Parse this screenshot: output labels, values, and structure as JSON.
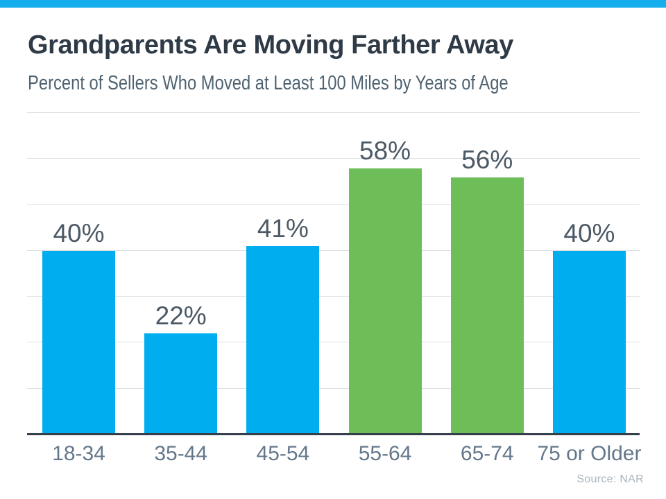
{
  "page": {
    "accent_strip_color": "#13aeeb"
  },
  "header": {
    "title": "Grandparents Are Moving Farther Away",
    "subtitle": "Percent of Sellers Who Moved at Least 100 Miles by Years of Age"
  },
  "footer": {
    "source": "Source: NAR"
  },
  "chart_data": {
    "type": "bar",
    "title": "Grandparents Are Moving Farther Away",
    "subtitle": "Percent of Sellers Who Moved at Least 100 Miles by Years of Age",
    "categories": [
      "18-34",
      "35-44",
      "45-54",
      "55-64",
      "65-74",
      "75 or Older"
    ],
    "values": [
      40,
      22,
      41,
      58,
      56,
      40
    ],
    "value_labels": [
      "40%",
      "22%",
      "41%",
      "58%",
      "56%",
      "40%"
    ],
    "bar_colors": [
      "#00aeef",
      "#00aeef",
      "#00aeef",
      "#6dbe58",
      "#6dbe58",
      "#00aeef"
    ],
    "brand_blue": "#00aeef",
    "brand_green": "#6dbe58",
    "xlabel": "",
    "ylabel": "",
    "ylim": [
      0,
      70
    ],
    "grid": {
      "axis": "y",
      "step": 10,
      "color": "#dbdfe2",
      "visible": true
    },
    "baseline_color": "#353f4a",
    "legend_position": "none",
    "y_tick_labels_visible": false,
    "source": "Source: NAR"
  }
}
